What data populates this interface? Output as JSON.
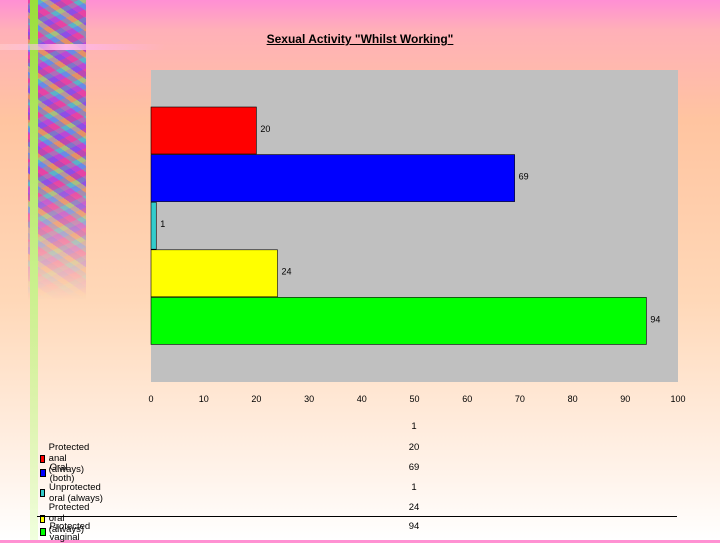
{
  "chart_data": {
    "type": "bar",
    "orientation": "horizontal",
    "title": "Sexual Activity \"Whilst Working\"",
    "categories": [
      "Protected anal (always)",
      "Oral (both)",
      "Unprotected oral (always)",
      "Protected oral (always)",
      "Protected vaginal"
    ],
    "values": [
      20,
      69,
      1,
      24,
      94
    ],
    "colors": [
      "#ff0000",
      "#0000ff",
      "#33cccc",
      "#ffff00",
      "#00ff00"
    ],
    "xlim": [
      0,
      100
    ],
    "xticks": [
      0,
      10,
      20,
      30,
      40,
      50,
      60,
      70,
      80,
      90,
      100
    ],
    "grid": false,
    "background": "#c0c0c0",
    "data_table": {
      "header": "1",
      "rows": [
        {
          "label": "Protected anal (always)",
          "value": "20"
        },
        {
          "label": "Oral (both)",
          "value": "69"
        },
        {
          "label": "Unprotected oral (always)",
          "value": "1"
        },
        {
          "label": "Protected oral (always)",
          "value": "24"
        },
        {
          "label": "Protected vaginal",
          "value": "94"
        }
      ]
    }
  }
}
